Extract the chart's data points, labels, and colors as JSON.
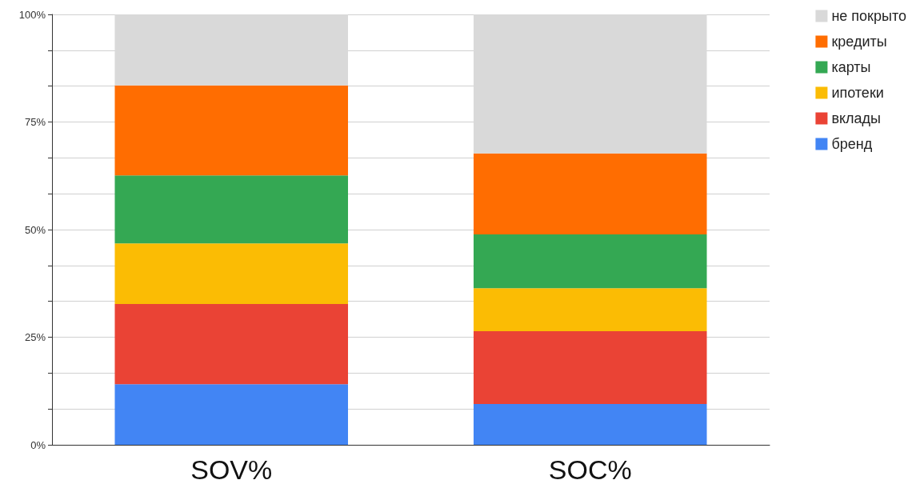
{
  "chart_data": {
    "type": "bar",
    "stacked": true,
    "categories": [
      "SOV%",
      "SOC%"
    ],
    "series": [
      {
        "name": "бренд",
        "color": "#4285f4",
        "values": [
          14.1,
          9.5
        ]
      },
      {
        "name": "вклады",
        "color": "#ea4335",
        "values": [
          18.6,
          16.9
        ]
      },
      {
        "name": "ипотеки",
        "color": "#fbbc04",
        "values": [
          14.1,
          10.0
        ]
      },
      {
        "name": "карты",
        "color": "#34a853",
        "values": [
          15.8,
          12.5
        ]
      },
      {
        "name": "кредиты",
        "color": "#ff6d01",
        "values": [
          20.9,
          18.8
        ]
      },
      {
        "name": "не покрыто",
        "color": "#d9d9d9",
        "values": [
          16.5,
          32.3
        ]
      }
    ],
    "ylim": [
      0,
      100
    ],
    "yticks": [
      {
        "value": 0,
        "label": "0%"
      },
      {
        "value": 8.33,
        "label": null
      },
      {
        "value": 16.67,
        "label": null
      },
      {
        "value": 25,
        "label": "25%"
      },
      {
        "value": 33.33,
        "label": null
      },
      {
        "value": 41.67,
        "label": null
      },
      {
        "value": 50,
        "label": "50%"
      },
      {
        "value": 58.33,
        "label": null
      },
      {
        "value": 66.67,
        "label": null
      },
      {
        "value": 75,
        "label": "75%"
      },
      {
        "value": 83.33,
        "label": null
      },
      {
        "value": 91.67,
        "label": null
      },
      {
        "value": 100,
        "label": "100%"
      }
    ],
    "grid": "y",
    "legend": "top right"
  }
}
